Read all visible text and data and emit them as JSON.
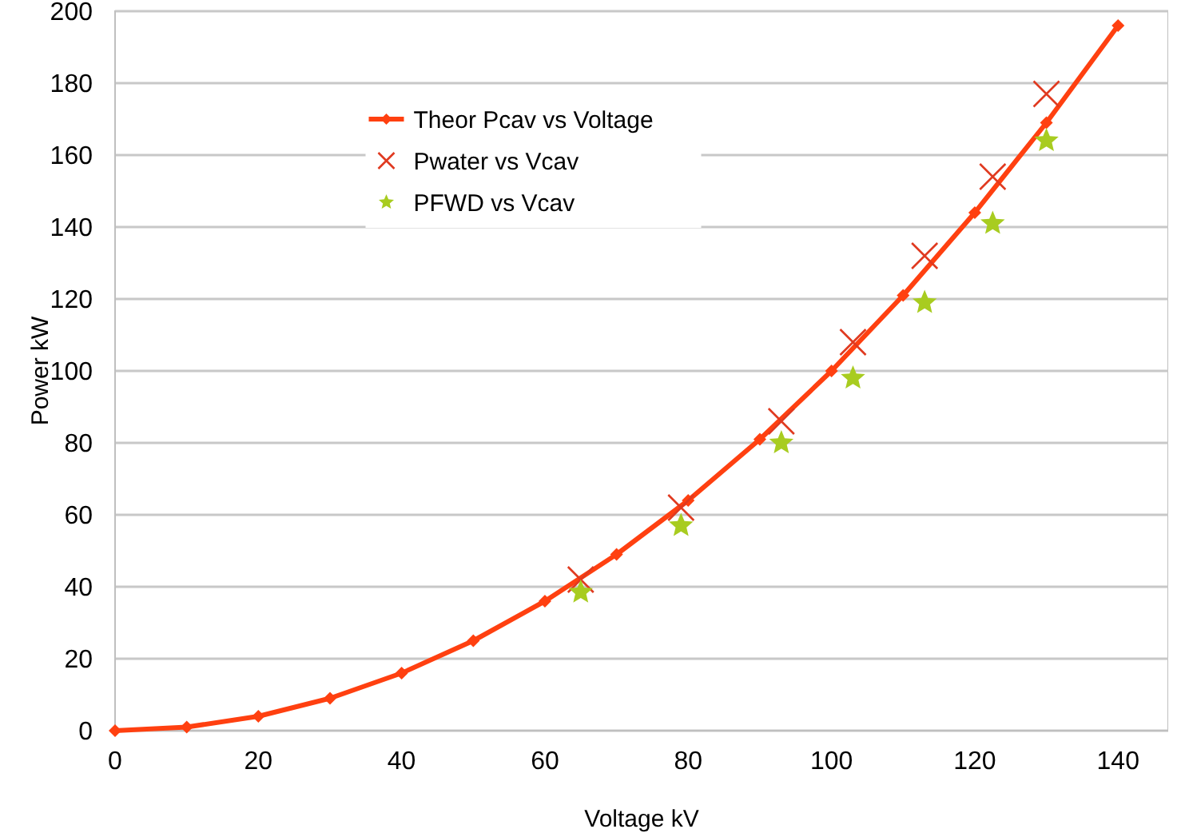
{
  "chart_data": {
    "type": "line",
    "xlabel": "Voltage kV",
    "ylabel": "Power kW",
    "xlim": [
      0,
      147
    ],
    "xticks": [
      0,
      20,
      40,
      60,
      80,
      100,
      120,
      140
    ],
    "ylim": [
      0,
      200
    ],
    "yticks": [
      0,
      20,
      40,
      60,
      80,
      100,
      120,
      140,
      160,
      180,
      200
    ],
    "grid": "y",
    "legend": "top left",
    "series": [
      {
        "name": "Theor Pcav vs Voltage",
        "type": "line",
        "marker": "diamond",
        "color": "#ff4010",
        "x": [
          0,
          10,
          20,
          30,
          40,
          50,
          60,
          70,
          80,
          90,
          100,
          110,
          120,
          130,
          140
        ],
        "values": [
          0,
          1,
          4,
          9,
          16,
          25,
          36,
          49,
          64,
          81,
          100,
          121,
          144,
          169,
          196
        ]
      },
      {
        "name": "Pwater vs Vcav",
        "type": "scatter",
        "marker": "cross",
        "color": "#e03a20",
        "x": [
          65,
          79,
          93,
          103,
          113,
          122.5,
          130
        ],
        "values": [
          42,
          62,
          86,
          108,
          132,
          154,
          177
        ]
      },
      {
        "name": "PFWD vs Vcav",
        "type": "scatter",
        "marker": "star",
        "color": "#a8cc20",
        "x": [
          65,
          79,
          93,
          103,
          113,
          122.5,
          130
        ],
        "values": [
          38.5,
          57,
          80,
          98,
          119,
          141,
          164
        ]
      }
    ]
  }
}
